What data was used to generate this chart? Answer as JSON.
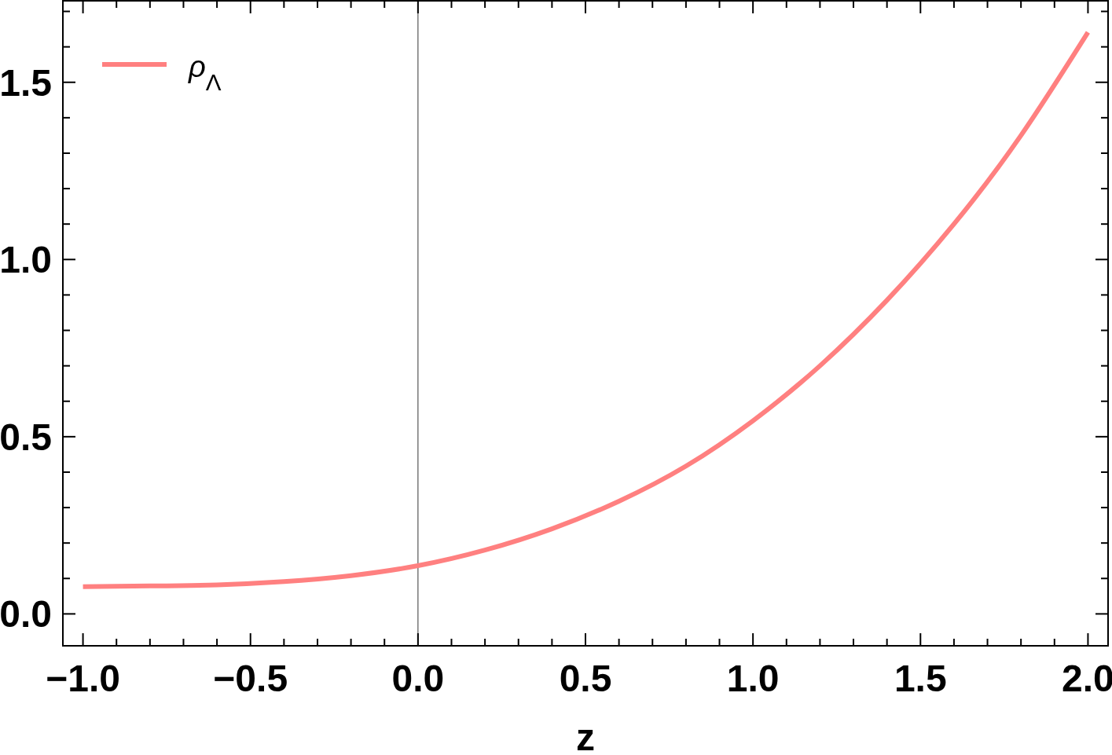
{
  "chart_data": {
    "type": "line",
    "xlabel": "z",
    "x": [
      -1.0,
      -0.8,
      -0.6,
      -0.4,
      -0.2,
      0.0,
      0.2,
      0.4,
      0.6,
      0.8,
      1.0,
      1.2,
      1.4,
      1.6,
      1.8,
      2.0
    ],
    "series": [
      {
        "name": "ρ$_{Λ}$",
        "color": "#ff8080",
        "values": [
          0.077,
          0.079,
          0.082,
          0.091,
          0.108,
          0.136,
          0.18,
          0.24,
          0.318,
          0.417,
          0.545,
          0.7,
          0.885,
          1.1,
          1.35,
          1.641
        ]
      }
    ],
    "xlim": [
      -1.06,
      2.06
    ],
    "ylim": [
      -0.09,
      1.73
    ],
    "xticks": [
      {
        "value": -1.0,
        "label": "−1.0"
      },
      {
        "value": -0.9,
        "label": null
      },
      {
        "value": -0.8,
        "label": null
      },
      {
        "value": -0.7,
        "label": null
      },
      {
        "value": -0.6,
        "label": null
      },
      {
        "value": -0.5,
        "label": "−0.5"
      },
      {
        "value": -0.4,
        "label": null
      },
      {
        "value": -0.3,
        "label": null
      },
      {
        "value": -0.2,
        "label": null
      },
      {
        "value": -0.1,
        "label": null
      },
      {
        "value": 0.0,
        "label": "0.0"
      },
      {
        "value": 0.1,
        "label": null
      },
      {
        "value": 0.2,
        "label": null
      },
      {
        "value": 0.3,
        "label": null
      },
      {
        "value": 0.4,
        "label": null
      },
      {
        "value": 0.5,
        "label": "0.5"
      },
      {
        "value": 0.6,
        "label": null
      },
      {
        "value": 0.7,
        "label": null
      },
      {
        "value": 0.8,
        "label": null
      },
      {
        "value": 0.9,
        "label": null
      },
      {
        "value": 1.0,
        "label": "1.0"
      },
      {
        "value": 1.1,
        "label": null
      },
      {
        "value": 1.2,
        "label": null
      },
      {
        "value": 1.3,
        "label": null
      },
      {
        "value": 1.4,
        "label": null
      },
      {
        "value": 1.5,
        "label": "1.5"
      },
      {
        "value": 1.6,
        "label": null
      },
      {
        "value": 1.7,
        "label": null
      },
      {
        "value": 1.8,
        "label": null
      },
      {
        "value": 1.9,
        "label": null
      },
      {
        "value": 2.0,
        "label": "2.0"
      }
    ],
    "yticks": [
      {
        "value": 0.0,
        "label": "0.0"
      },
      {
        "value": 0.1,
        "label": null
      },
      {
        "value": 0.2,
        "label": null
      },
      {
        "value": 0.3,
        "label": null
      },
      {
        "value": 0.4,
        "label": null
      },
      {
        "value": 0.5,
        "label": "0.5"
      },
      {
        "value": 0.6,
        "label": null
      },
      {
        "value": 0.7,
        "label": null
      },
      {
        "value": 0.8,
        "label": null
      },
      {
        "value": 0.9,
        "label": null
      },
      {
        "value": 1.0,
        "label": "1.0"
      },
      {
        "value": 1.1,
        "label": null
      },
      {
        "value": 1.2,
        "label": null
      },
      {
        "value": 1.3,
        "label": null
      },
      {
        "value": 1.4,
        "label": null
      },
      {
        "value": 1.5,
        "label": "1.5"
      },
      {
        "value": 1.6,
        "label": null
      },
      {
        "value": 1.7,
        "label": null
      }
    ],
    "legend": "top left",
    "ref_lines": [
      {
        "axis": "x",
        "value": 0,
        "color": "#555555"
      }
    ]
  }
}
